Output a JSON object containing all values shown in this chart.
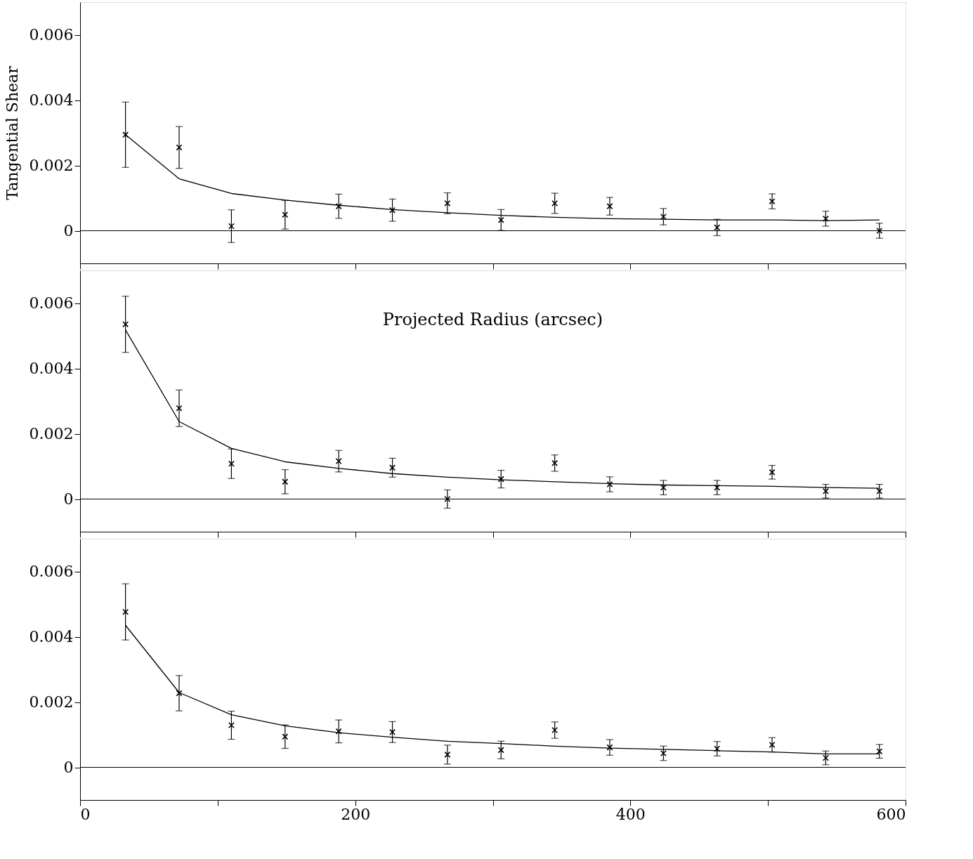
{
  "chart_data": [
    {
      "type": "scatter",
      "ylabel": "Tangential Shear",
      "xlim": [
        0,
        600
      ],
      "ylim": [
        -0.001,
        0.007
      ],
      "tick_labels": "y",
      "grid": false,
      "xticks": [
        0,
        {
          "value": 100,
          "label": null
        },
        200,
        {
          "value": 300,
          "label": null
        },
        400,
        {
          "value": 500,
          "label": null
        },
        600
      ],
      "yticks": [
        0,
        0.002,
        0.004,
        0.006
      ],
      "x": [
        33,
        72,
        110,
        149,
        188,
        227,
        267,
        306,
        345,
        385,
        424,
        463,
        503,
        542,
        581
      ],
      "series": [
        {
          "marker": "cross",
          "color": "#000000",
          "values": [
            0.00294,
            0.00255,
            0.00014,
            0.00049,
            0.00075,
            0.00063,
            0.00084,
            0.00033,
            0.00084,
            0.00075,
            0.00043,
            0.0001,
            0.0009,
            0.00037,
            0
          ],
          "errors": [
            0.001,
            0.00064,
            0.0005,
            0.00044,
            0.00037,
            0.00034,
            0.00032,
            0.00032,
            0.00031,
            0.00027,
            0.00025,
            0.00025,
            0.00023,
            0.00023,
            0.00023
          ]
        },
        {
          "type": "line",
          "color": "#000000",
          "values": [
            0.00294,
            0.00159,
            0.00114,
            0.00094,
            0.00078,
            0.00065,
            0.00055,
            0.00047,
            0.00041,
            0.00037,
            0.00035,
            0.00033,
            0.00033,
            0.00031,
            0.00033
          ]
        }
      ],
      "ref_lines": [
        {
          "axis": "y",
          "value": 0,
          "color": "#000000"
        }
      ]
    },
    {
      "type": "scatter",
      "xlim": [
        0,
        600
      ],
      "ylim": [
        -0.001,
        0.007
      ],
      "tick_labels": "y",
      "grid": false,
      "xticks": [
        0,
        {
          "value": 100,
          "label": null
        },
        200,
        {
          "value": 300,
          "label": null
        },
        400,
        {
          "value": 500,
          "label": null
        },
        600
      ],
      "yticks": [
        0,
        0.002,
        0.004,
        0.006
      ],
      "x": [
        33,
        72,
        110,
        149,
        188,
        227,
        267,
        306,
        345,
        385,
        424,
        463,
        503,
        542,
        581
      ],
      "series": [
        {
          "marker": "cross",
          "color": "#000000",
          "values": [
            0.00535,
            0.00278,
            0.00108,
            0.00053,
            0.00116,
            0.00096,
            0,
            0.00061,
            0.0011,
            0.00045,
            0.00035,
            0.00035,
            0.00082,
            0.00024,
            0.00024
          ],
          "errors": [
            0.00086,
            0.00056,
            0.00045,
            0.00037,
            0.00033,
            0.00029,
            0.00028,
            0.00027,
            0.00025,
            0.00023,
            0.00022,
            0.00022,
            0.00021,
            0.00021,
            0.00021
          ]
        },
        {
          "type": "line",
          "color": "#000000",
          "values": [
            0.00518,
            0.00237,
            0.00155,
            0.00114,
            0.00094,
            0.00078,
            0.00067,
            0.00059,
            0.00053,
            0.00047,
            0.00043,
            0.00041,
            0.00039,
            0.00035,
            0.00033
          ]
        }
      ],
      "ref_lines": [
        {
          "axis": "y",
          "value": 0,
          "color": "#000000"
        }
      ],
      "annotations": [
        "Projected Radius (arcsec)"
      ]
    },
    {
      "type": "scatter",
      "xlim": [
        0,
        600
      ],
      "ylim": [
        -0.001,
        0.007
      ],
      "grid": false,
      "xticks": [
        0,
        {
          "value": 100,
          "label": null
        },
        200,
        {
          "value": 300,
          "label": null
        },
        400,
        {
          "value": 500,
          "label": null
        },
        600
      ],
      "yticks": [
        0,
        0.002,
        0.004,
        0.006
      ],
      "x": [
        33,
        72,
        110,
        149,
        188,
        227,
        267,
        306,
        345,
        385,
        424,
        463,
        503,
        542,
        581
      ],
      "series": [
        {
          "marker": "cross",
          "color": "#000000",
          "values": [
            0.00476,
            0.00227,
            0.00129,
            0.00094,
            0.0011,
            0.00108,
            0.00039,
            0.00053,
            0.00114,
            0.00061,
            0.00043,
            0.00057,
            0.00069,
            0.00029,
            0.00049
          ],
          "errors": [
            0.00086,
            0.00054,
            0.00043,
            0.00036,
            0.00035,
            0.00032,
            0.00029,
            0.00027,
            0.00025,
            0.00024,
            0.00022,
            0.00022,
            0.00022,
            0.00021,
            0.00021
          ]
        },
        {
          "type": "line",
          "color": "#000000",
          "values": [
            0.00435,
            0.00229,
            0.00161,
            0.00127,
            0.00106,
            0.00092,
            0.0008,
            0.00073,
            0.00065,
            0.00059,
            0.00055,
            0.00051,
            0.00047,
            0.00041,
            0.00041
          ]
        }
      ],
      "ref_lines": [
        {
          "axis": "y",
          "value": 0,
          "color": "#000000"
        }
      ]
    }
  ]
}
